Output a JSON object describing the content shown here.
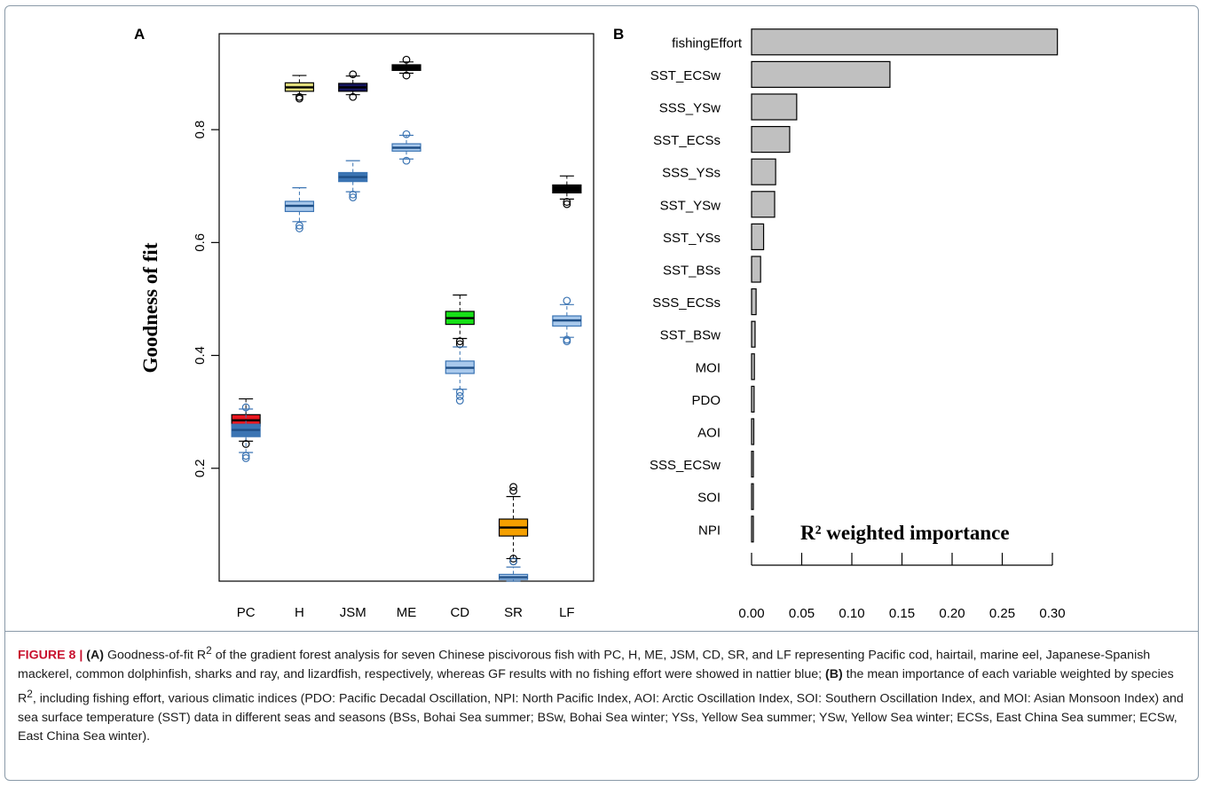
{
  "chart_data": [
    {
      "type": "boxplot",
      "panel_label": "A",
      "ylabel": "Goodness of fit",
      "ylim": [
        0.0,
        0.97
      ],
      "yticks": [
        "0.2",
        "0.4",
        "0.6",
        "0.8"
      ],
      "categories": [
        "PC",
        "H",
        "JSM",
        "ME",
        "CD",
        "SR",
        "LF"
      ],
      "series": [
        {
          "colors": [
            "#e8171f",
            "#e0dc7a",
            "#14145e",
            "#000000",
            "#17e017",
            "#f5a000",
            "#000000"
          ],
          "boxes": [
            {
              "min": 0.248,
              "q1": 0.275,
              "median": 0.285,
              "q3": 0.295,
              "max": 0.323,
              "outliers": [
                0.243
              ]
            },
            {
              "min": 0.862,
              "q1": 0.868,
              "median": 0.875,
              "q3": 0.883,
              "max": 0.896,
              "outliers": [
                0.855,
                0.858
              ]
            },
            {
              "min": 0.862,
              "q1": 0.868,
              "median": 0.875,
              "q3": 0.882,
              "max": 0.895,
              "outliers": [
                0.858,
                0.898
              ]
            },
            {
              "min": 0.9,
              "q1": 0.905,
              "median": 0.91,
              "q3": 0.915,
              "max": 0.92,
              "outliers": [
                0.896,
                0.924
              ]
            },
            {
              "min": 0.43,
              "q1": 0.455,
              "median": 0.466,
              "q3": 0.478,
              "max": 0.507,
              "outliers": [
                0.42,
                0.425
              ]
            },
            {
              "min": 0.04,
              "q1": 0.08,
              "median": 0.095,
              "q3": 0.11,
              "max": 0.15,
              "outliers": [
                0.035,
                0.04,
                0.16,
                0.167
              ]
            },
            {
              "min": 0.677,
              "q1": 0.688,
              "median": 0.695,
              "q3": 0.702,
              "max": 0.718,
              "outliers": [
                0.668,
                0.672
              ]
            }
          ]
        },
        {
          "colors": [
            "#3b74b3",
            "#a9c9ec",
            "#3b74b3",
            "#a9c9ec",
            "#a9c9ec",
            "#a9c9ec",
            "#a9c9ec"
          ],
          "boxes": [
            {
              "min": 0.228,
              "q1": 0.256,
              "median": 0.268,
              "q3": 0.278,
              "max": 0.305,
              "outliers": [
                0.218,
                0.222,
                0.308
              ]
            },
            {
              "min": 0.637,
              "q1": 0.655,
              "median": 0.665,
              "q3": 0.673,
              "max": 0.697,
              "outliers": [
                0.625,
                0.63
              ]
            },
            {
              "min": 0.69,
              "q1": 0.708,
              "median": 0.716,
              "q3": 0.724,
              "max": 0.745,
              "outliers": [
                0.68,
                0.685
              ]
            },
            {
              "min": 0.748,
              "q1": 0.762,
              "median": 0.768,
              "q3": 0.775,
              "max": 0.79,
              "outliers": [
                0.745,
                0.792
              ]
            },
            {
              "min": 0.34,
              "q1": 0.368,
              "median": 0.378,
              "q3": 0.39,
              "max": 0.415,
              "outliers": [
                0.32,
                0.328,
                0.335
              ]
            },
            {
              "min": 0.0,
              "q1": 0.003,
              "median": 0.007,
              "q3": 0.012,
              "max": 0.025,
              "outliers": [
                0.035
              ]
            },
            {
              "min": 0.432,
              "q1": 0.452,
              "median": 0.462,
              "q3": 0.47,
              "max": 0.49,
              "outliers": [
                0.425,
                0.428,
                0.497
              ]
            }
          ]
        }
      ]
    },
    {
      "type": "bar",
      "orientation": "horizontal",
      "panel_label": "B",
      "title": "R² weighted importance",
      "xlim": [
        0.0,
        0.3
      ],
      "xticks": [
        "0.00",
        "0.05",
        "0.10",
        "0.15",
        "0.20",
        "0.25",
        "0.30"
      ],
      "categories": [
        "fishingEffort",
        "SST_ECSw",
        "SSS_YSw",
        "SST_ECSs",
        "SSS_YSs",
        "SST_YSw",
        "SST_YSs",
        "SST_BSs",
        "SSS_ECSs",
        "SST_BSw",
        "MOI",
        "PDO",
        "AOI",
        "SSS_ECSw",
        "SOI",
        "NPI"
      ],
      "values": [
        0.305,
        0.138,
        0.045,
        0.038,
        0.024,
        0.023,
        0.012,
        0.009,
        0.0045,
        0.0035,
        0.0028,
        0.0025,
        0.0022,
        0.0015,
        0.0008,
        0.0005
      ],
      "bar_color": "#c0c0c0"
    }
  ],
  "caption": {
    "figure_label": "FIGURE 8 |",
    "part_a_label": "(A)",
    "part_a_text_1": "Goodness-of-fit R",
    "part_a_sup": "2",
    "part_a_text_2": "of the gradient forest analysis for seven Chinese piscivorous fish with PC, H, ME, JSM, CD, SR, and LF representing Pacific cod, hairtail, marine eel, Japanese-Spanish mackerel, common dolphinfish, sharks and ray, and lizardfish, respectively, whereas GF results with no fishing effort were showed in nattier blue;",
    "part_b_label": "(B)",
    "part_b_text_1": "the mean importance of each variable weighted by species R",
    "part_b_sup": "2",
    "part_b_text_2": ", including fishing effort, various climatic indices (PDO: Pacific Decadal Oscillation, NPI: North Pacific Index, AOI: Arctic Oscillation Index, SOI: Southern Oscillation Index, and MOI: Asian Monsoon Index) and sea surface temperature (SST) data in different seas and seasons (BSs, Bohai Sea summer; BSw, Bohai Sea winter; YSs, Yellow Sea summer; YSw, Yellow Sea winter; ECSs, East China Sea summer; ECSw, East China Sea winter)."
  }
}
